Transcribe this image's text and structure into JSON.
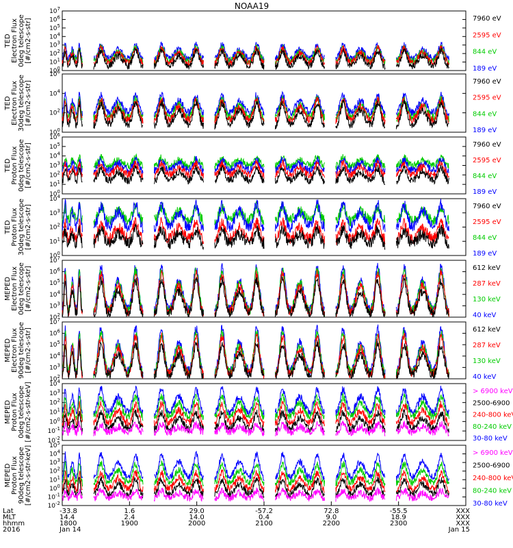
{
  "chart_data": {
    "type": "line",
    "title": "NOAA19",
    "panels": [
      {
        "ylabel": [
          "TED",
          "Electron Flux",
          "0deg telescope",
          "[#/cm2-s-str]"
        ],
        "ylim": [
          1,
          10000000
        ],
        "y_tick_labels": [
          "10^0",
          "10^1",
          "10^2",
          "10^3",
          "10^4",
          "10^5",
          "10^6",
          "10^7"
        ],
        "legend": [
          {
            "label": "7960 eV",
            "color": "#000000"
          },
          {
            "label": "2595 eV",
            "color": "#ff0000"
          },
          {
            "label": "844 eV",
            "color": "#00cc00"
          },
          {
            "label": "189 eV",
            "color": "#0000ff"
          }
        ],
        "series": [
          {
            "color": "#0000ff",
            "base": 1.3,
            "peak": 3.0
          },
          {
            "color": "#00cc00",
            "base": 1.0,
            "peak": 2.7
          },
          {
            "color": "#ff0000",
            "base": 0.8,
            "peak": 2.6
          },
          {
            "color": "#000000",
            "base": 0.4,
            "peak": 2.3
          }
        ]
      },
      {
        "ylabel": [
          "TED",
          "Electron Flux",
          "30deg telescope",
          "[#/cm2-s-str]"
        ],
        "ylim": [
          1,
          1000000
        ],
        "y_tick_labels": [
          "10^0",
          "10^2",
          "10^4",
          "10^6"
        ],
        "legend": [
          {
            "label": "7960 eV",
            "color": "#000000"
          },
          {
            "label": "2595 eV",
            "color": "#ff0000"
          },
          {
            "label": "844 eV",
            "color": "#00cc00"
          },
          {
            "label": "189 eV",
            "color": "#0000ff"
          }
        ],
        "series": [
          {
            "color": "#0000ff",
            "base": 1.9,
            "peak": 3.8
          },
          {
            "color": "#00cc00",
            "base": 1.4,
            "peak": 3.4
          },
          {
            "color": "#ff0000",
            "base": 1.1,
            "peak": 3.3
          },
          {
            "color": "#000000",
            "base": 0.6,
            "peak": 3.0
          }
        ]
      },
      {
        "ylabel": [
          "TED",
          "Proton Flux",
          "0deg telescope",
          "[#/cm2-s-str]"
        ],
        "ylim": [
          1,
          1000000
        ],
        "y_tick_labels": [
          "10^0",
          "10^1",
          "10^2",
          "10^3",
          "10^4",
          "10^5",
          "10^6"
        ],
        "legend": [
          {
            "label": "7960 eV",
            "color": "#000000"
          },
          {
            "label": "2595 eV",
            "color": "#ff0000"
          },
          {
            "label": "844 eV",
            "color": "#00cc00"
          },
          {
            "label": "189 eV",
            "color": "#0000ff"
          }
        ],
        "series": [
          {
            "color": "#00cc00",
            "base": 2.9,
            "peak": 3.8
          },
          {
            "color": "#0000ff",
            "base": 2.4,
            "peak": 3.6
          },
          {
            "color": "#ff0000",
            "base": 1.9,
            "peak": 3.2
          },
          {
            "color": "#000000",
            "base": 1.3,
            "peak": 2.7
          }
        ]
      },
      {
        "ylabel": [
          "TED",
          "Proton Flux",
          "30deg telescope",
          "[#/cm2-s-str]"
        ],
        "ylim": [
          1,
          10000
        ],
        "y_tick_labels": [
          "10^0",
          "10^1",
          "10^2",
          "10^3",
          "10^4"
        ],
        "legend": [
          {
            "label": "7960 eV",
            "color": "#000000"
          },
          {
            "label": "2595 eV",
            "color": "#ff0000"
          },
          {
            "label": "844 eV",
            "color": "#00cc00"
          },
          {
            "label": "189 eV",
            "color": "#0000ff"
          }
        ],
        "series": [
          {
            "color": "#00cc00",
            "base": 2.4,
            "peak": 3.4
          },
          {
            "color": "#0000ff",
            "base": 1.9,
            "peak": 3.6
          },
          {
            "color": "#ff0000",
            "base": 1.1,
            "peak": 2.3
          },
          {
            "color": "#000000",
            "base": 0.8,
            "peak": 1.8
          }
        ]
      },
      {
        "ylabel": [
          "MEPED",
          "Electron Flux",
          "0deg telescope",
          "[#/cm2-s-str]"
        ],
        "ylim": [
          100,
          10000000
        ],
        "y_tick_labels": [
          "10^2",
          "10^3",
          "10^4",
          "10^5",
          "10^6",
          "10^7"
        ],
        "legend": [
          {
            "label": "612 keV",
            "color": "#000000"
          },
          {
            "label": "287 keV",
            "color": "#ff0000"
          },
          {
            "label": "130 keV",
            "color": "#00cc00"
          },
          {
            "label": "40 keV",
            "color": "#0000ff"
          }
        ],
        "series": [
          {
            "color": "#0000ff",
            "base": 2.4,
            "peak": 6.4
          },
          {
            "color": "#00cc00",
            "base": 2.3,
            "peak": 6.1
          },
          {
            "color": "#ff0000",
            "base": 2.2,
            "peak": 5.8
          },
          {
            "color": "#000000",
            "base": 2.1,
            "peak": 5.2
          }
        ]
      },
      {
        "ylabel": [
          "MEPED",
          "Electron Flux",
          "90deg telescope",
          "[#/cm2-s-str]"
        ],
        "ylim": [
          100,
          10000000
        ],
        "y_tick_labels": [
          "10^2",
          "10^3",
          "10^4",
          "10^5",
          "10^6",
          "10^7"
        ],
        "legend": [
          {
            "label": "612 keV",
            "color": "#000000"
          },
          {
            "label": "287 keV",
            "color": "#ff0000"
          },
          {
            "label": "130 keV",
            "color": "#00cc00"
          },
          {
            "label": "40 keV",
            "color": "#0000ff"
          }
        ],
        "series": [
          {
            "color": "#0000ff",
            "base": 2.4,
            "peak": 6.4
          },
          {
            "color": "#00cc00",
            "base": 2.3,
            "peak": 6.0
          },
          {
            "color": "#ff0000",
            "base": 2.2,
            "peak": 5.7
          },
          {
            "color": "#000000",
            "base": 2.1,
            "peak": 5.0
          }
        ]
      },
      {
        "ylabel": [
          "MEPED",
          "Proton Flux",
          "0deg telescope",
          "[#/cm2-s-str-keV]"
        ],
        "ylim": [
          0.01,
          10000
        ],
        "y_tick_labels": [
          "10^-2",
          "10^-1",
          "10^0",
          "10^1",
          "10^2",
          "10^3",
          "10^4"
        ],
        "legend": [
          {
            "label": "> 6900 keV",
            "color": "#ff00ff"
          },
          {
            "label": "2500-6900",
            "color": "#000000"
          },
          {
            "label": "240-800 keV",
            "color": "#ff0000"
          },
          {
            "label": "80-240 keV",
            "color": "#00cc00"
          },
          {
            "label": "30-80 keV",
            "color": "#0000ff"
          }
        ],
        "series": [
          {
            "color": "#0000ff",
            "base": 0.8,
            "peak": 3.4
          },
          {
            "color": "#00cc00",
            "base": 0.4,
            "peak": 2.6
          },
          {
            "color": "#ff0000",
            "base": -0.3,
            "peak": 1.8
          },
          {
            "color": "#000000",
            "base": -0.9,
            "peak": 0.9
          },
          {
            "color": "#ff00ff",
            "base": -1.2,
            "peak": -0.3
          }
        ]
      },
      {
        "ylabel": [
          "MEPED",
          "Proton Flux",
          "90deg telescope",
          "[#/cm2-s-str-keV]"
        ],
        "ylim": [
          0.01,
          100000
        ],
        "y_tick_labels": [
          "10^-2",
          "10^-1",
          "10^0",
          "10^1",
          "10^2",
          "10^3",
          "10^4",
          "10^5"
        ],
        "legend": [
          {
            "label": "> 6900 keV",
            "color": "#ff00ff"
          },
          {
            "label": "2500-6900",
            "color": "#000000"
          },
          {
            "label": "240-800 keV",
            "color": "#ff0000"
          },
          {
            "label": "80-240 keV",
            "color": "#00cc00"
          },
          {
            "label": "30-80 keV",
            "color": "#0000ff"
          }
        ],
        "series": [
          {
            "color": "#0000ff",
            "base": 1.1,
            "peak": 3.9
          },
          {
            "color": "#00cc00",
            "base": 0.5,
            "peak": 2.8
          },
          {
            "color": "#ff0000",
            "base": -0.2,
            "peak": 1.8
          },
          {
            "color": "#000000",
            "base": -0.8,
            "peak": 1.0
          },
          {
            "color": "#ff00ff",
            "base": -1.2,
            "peak": -0.3
          }
        ]
      }
    ],
    "x_row_labels": [
      "Lat",
      "MLT",
      "hhmm",
      "2016"
    ],
    "x_ticks": [
      {
        "lat": "-33.8",
        "mlt": "14.4",
        "hhmm": "1800",
        "date": "Jan 14"
      },
      {
        "lat": "1.6",
        "mlt": "2.4",
        "hhmm": "1900",
        "date": ""
      },
      {
        "lat": "29.0",
        "mlt": "14.0",
        "hhmm": "2000",
        "date": ""
      },
      {
        "lat": "-57.2",
        "mlt": "0.4",
        "hhmm": "2100",
        "date": ""
      },
      {
        "lat": "72.8",
        "mlt": "9.0",
        "hhmm": "2200",
        "date": ""
      },
      {
        "lat": "-55.5",
        "mlt": "18.9",
        "hhmm": "2300",
        "date": ""
      },
      {
        "lat": "XXX",
        "mlt": "XXX",
        "hhmm": "XXX",
        "date": "Jan 15"
      }
    ],
    "passes_hhmm": [
      [
        "1800",
        "1818"
      ],
      [
        "1828",
        "1912"
      ],
      [
        "1922",
        "2006"
      ],
      [
        "2016",
        "2100"
      ],
      [
        "2110",
        "2154"
      ],
      [
        "2204",
        "2248"
      ],
      [
        "2258",
        "2345"
      ]
    ],
    "grid": false,
    "yscale": "log"
  }
}
